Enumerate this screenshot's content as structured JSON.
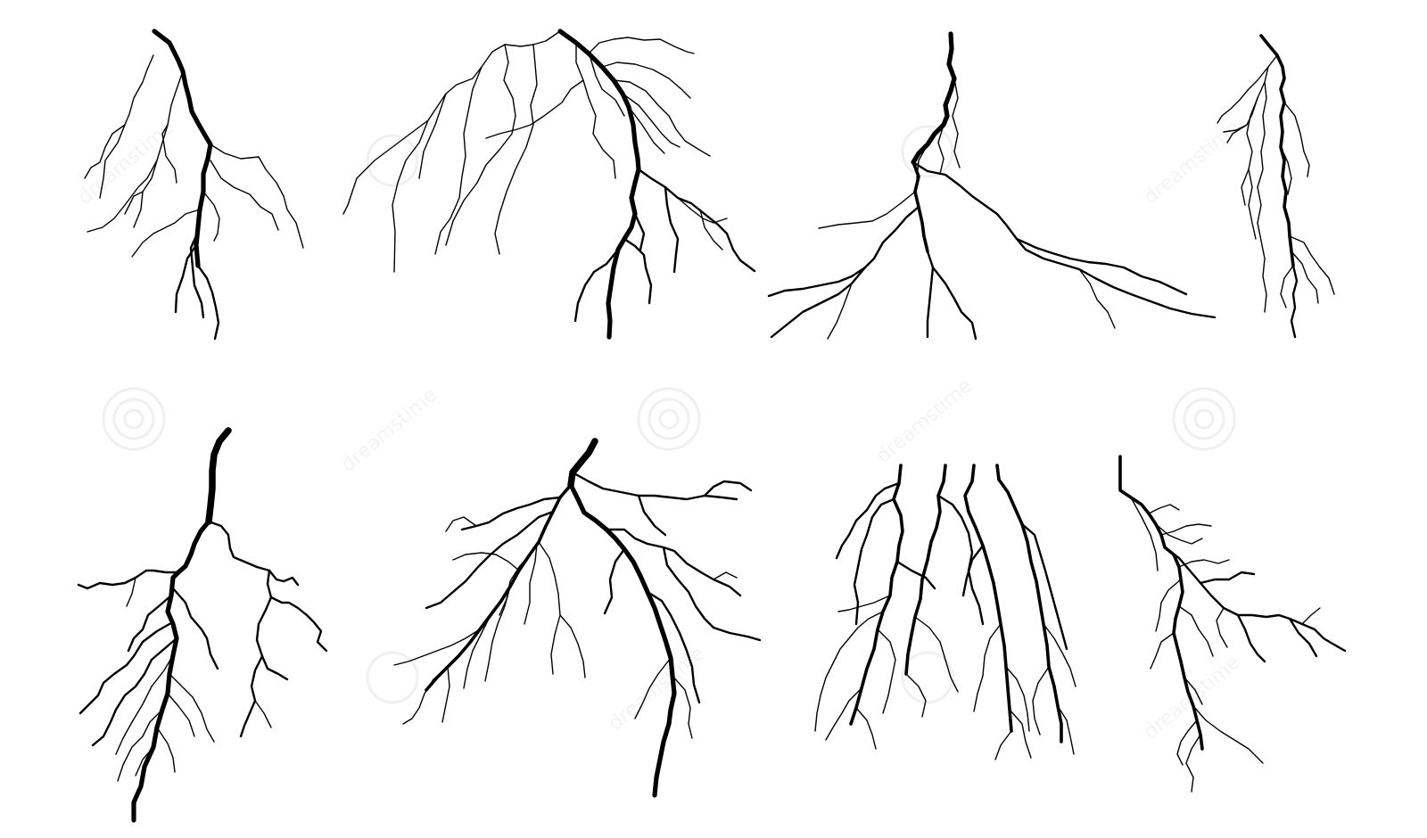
{
  "image": {
    "subject": "Set of eight black lightning bolt silhouettes on white",
    "watermark_text": "dreamstime",
    "colors": {
      "background": "#ffffff",
      "bolt": "#000000",
      "watermark": "#e6e6e6"
    }
  }
}
